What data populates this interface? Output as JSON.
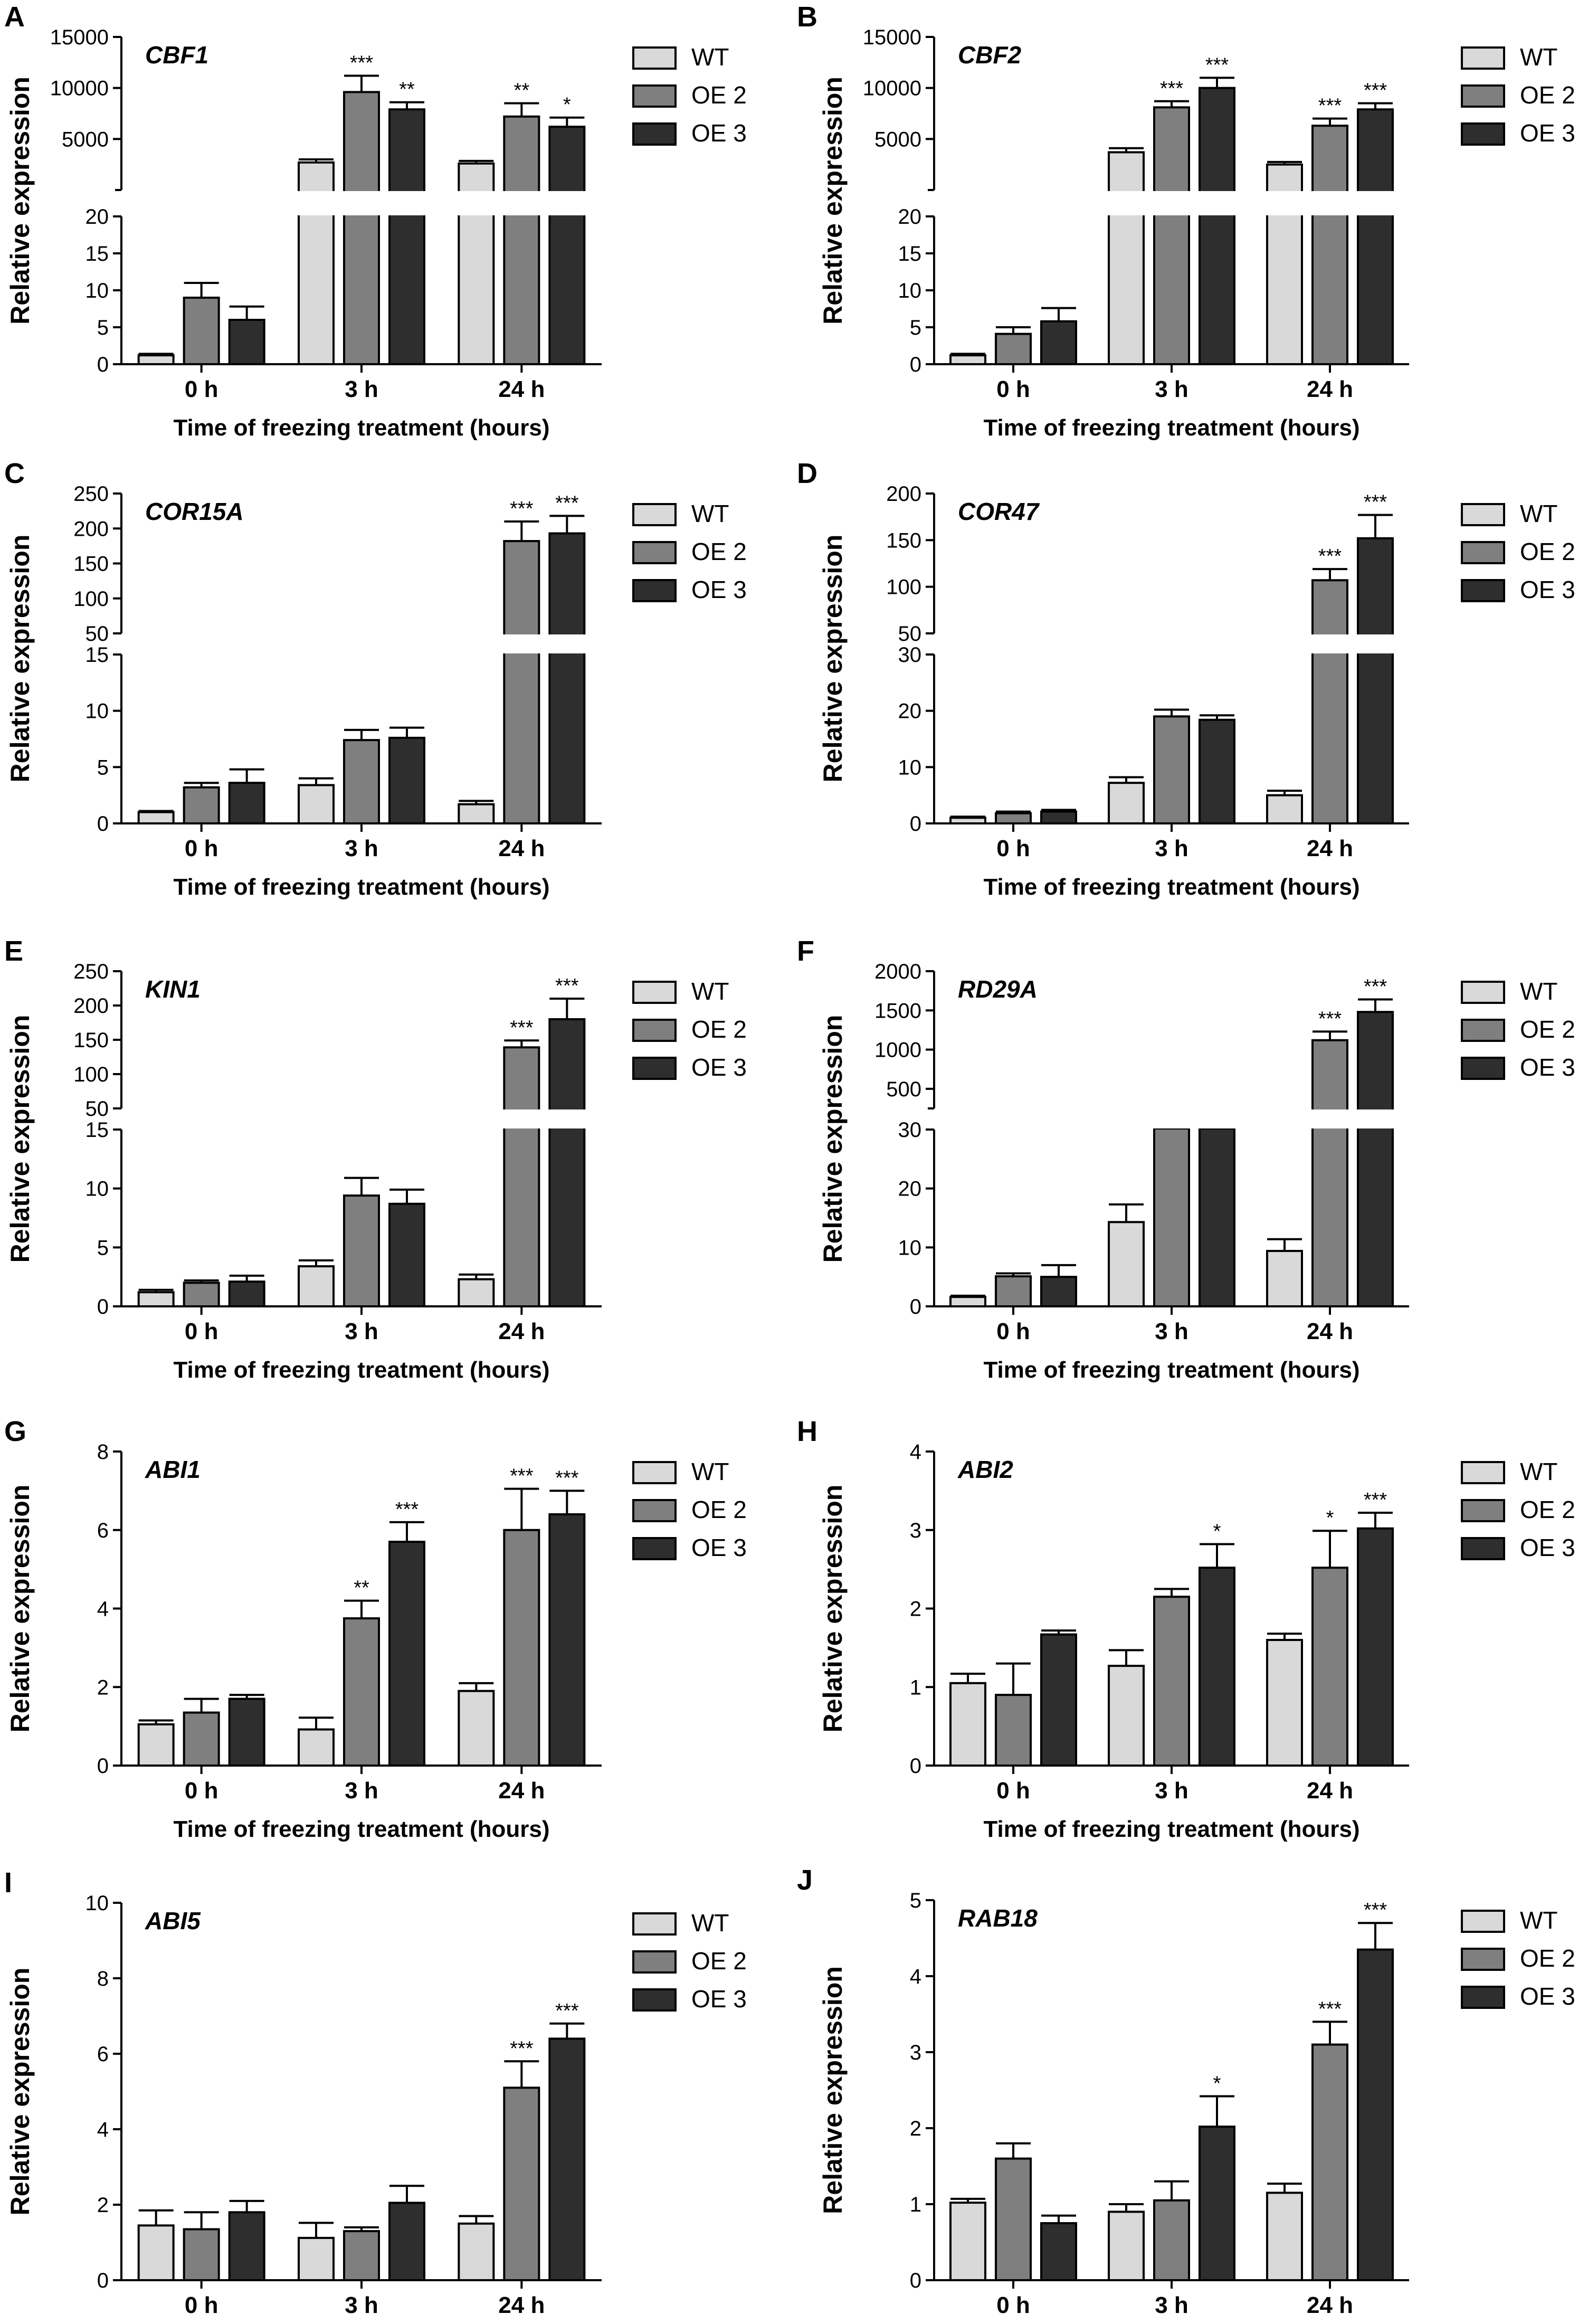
{
  "figure": {
    "series_names": [
      "WT",
      "OE 2",
      "OE 3"
    ],
    "series_colors": [
      "#d9d9d9",
      "#7f7f7f",
      "#2e2e2e"
    ],
    "x_categories": [
      "0 h",
      "3 h",
      "24 h"
    ],
    "xlabel": "Time of freezing treatment (hours)",
    "ylabel": "Relative expression"
  },
  "chart_data": [
    {
      "panel": "A",
      "gene": "CBF1",
      "type": "bar",
      "categories": [
        "0 h",
        "3 h",
        "24 h"
      ],
      "xlabel": "Time of freezing treatment (hours)",
      "ylabel": "Relative expression",
      "axis_break": true,
      "lower_ylim": [
        0,
        20
      ],
      "lower_ticks": [
        0,
        5,
        10,
        15,
        20
      ],
      "upper_ylim": [
        0,
        15000
      ],
      "upper_ticks": [
        5000,
        10000,
        15000
      ],
      "series": [
        {
          "name": "WT",
          "values": [
            1.2,
            2700,
            2600
          ],
          "errors": [
            0.2,
            300,
            250
          ],
          "sig": [
            "",
            "",
            ""
          ]
        },
        {
          "name": "OE 2",
          "values": [
            9.0,
            9600,
            7200
          ],
          "errors": [
            2.0,
            1600,
            1300
          ],
          "sig": [
            "",
            "***",
            "**"
          ]
        },
        {
          "name": "OE 3",
          "values": [
            6.0,
            7900,
            6200
          ],
          "errors": [
            1.8,
            700,
            900
          ],
          "sig": [
            "",
            "**",
            "*"
          ]
        }
      ]
    },
    {
      "panel": "B",
      "gene": "CBF2",
      "type": "bar",
      "categories": [
        "0 h",
        "3 h",
        "24 h"
      ],
      "xlabel": "Time of freezing treatment (hours)",
      "ylabel": "Relative expression",
      "axis_break": true,
      "lower_ylim": [
        0,
        20
      ],
      "lower_ticks": [
        0,
        5,
        10,
        15,
        20
      ],
      "upper_ylim": [
        0,
        15000
      ],
      "upper_ticks": [
        5000,
        10000,
        15000
      ],
      "series": [
        {
          "name": "WT",
          "values": [
            1.2,
            3700,
            2500
          ],
          "errors": [
            0.2,
            400,
            250
          ],
          "sig": [
            "",
            "",
            ""
          ]
        },
        {
          "name": "OE 2",
          "values": [
            4.1,
            8100,
            6300
          ],
          "errors": [
            0.9,
            600,
            700
          ],
          "sig": [
            "",
            "***",
            "***"
          ]
        },
        {
          "name": "OE 3",
          "values": [
            5.8,
            10000,
            7900
          ],
          "errors": [
            1.8,
            1000,
            600
          ],
          "sig": [
            "",
            "***",
            "***"
          ]
        }
      ]
    },
    {
      "panel": "C",
      "gene": "COR15A",
      "type": "bar",
      "categories": [
        "0 h",
        "3 h",
        "24 h"
      ],
      "xlabel": "Time of freezing treatment (hours)",
      "ylabel": "Relative expression",
      "axis_break": true,
      "lower_ylim": [
        0,
        15
      ],
      "lower_ticks": [
        0,
        5,
        10,
        15
      ],
      "upper_ylim": [
        50,
        250
      ],
      "upper_ticks": [
        50,
        100,
        150,
        200,
        250
      ],
      "series": [
        {
          "name": "WT",
          "values": [
            1.0,
            3.4,
            1.7
          ],
          "errors": [
            0.1,
            0.6,
            0.3
          ],
          "sig": [
            "",
            "",
            ""
          ]
        },
        {
          "name": "OE 2",
          "values": [
            3.2,
            7.4,
            182
          ],
          "errors": [
            0.4,
            0.9,
            28
          ],
          "sig": [
            "",
            "",
            "***"
          ]
        },
        {
          "name": "OE 3",
          "values": [
            3.6,
            7.6,
            193
          ],
          "errors": [
            1.2,
            0.9,
            25
          ],
          "sig": [
            "",
            "",
            "***"
          ]
        }
      ]
    },
    {
      "panel": "D",
      "gene": "COR47",
      "type": "bar",
      "categories": [
        "0 h",
        "3 h",
        "24 h"
      ],
      "xlabel": "Time of freezing treatment (hours)",
      "ylabel": "Relative expression",
      "axis_break": true,
      "lower_ylim": [
        0,
        30
      ],
      "lower_ticks": [
        0,
        10,
        20,
        30
      ],
      "upper_ylim": [
        50,
        200
      ],
      "upper_ticks": [
        50,
        100,
        150,
        200
      ],
      "series": [
        {
          "name": "WT",
          "values": [
            1.0,
            7.2,
            5.0
          ],
          "errors": [
            0.2,
            1.0,
            0.8
          ],
          "sig": [
            "",
            "",
            ""
          ]
        },
        {
          "name": "OE 2",
          "values": [
            1.8,
            19.0,
            107
          ],
          "errors": [
            0.3,
            1.2,
            12
          ],
          "sig": [
            "",
            "",
            "***"
          ]
        },
        {
          "name": "OE 3",
          "values": [
            2.1,
            18.4,
            152
          ],
          "errors": [
            0.3,
            0.8,
            25
          ],
          "sig": [
            "",
            "",
            "***"
          ]
        }
      ]
    },
    {
      "panel": "E",
      "gene": "KIN1",
      "type": "bar",
      "categories": [
        "0 h",
        "3 h",
        "24 h"
      ],
      "xlabel": "Time of freezing treatment (hours)",
      "ylabel": "Relative expression",
      "axis_break": true,
      "lower_ylim": [
        0,
        15
      ],
      "lower_ticks": [
        0,
        5,
        10,
        15
      ],
      "upper_ylim": [
        50,
        250
      ],
      "upper_ticks": [
        50,
        100,
        150,
        200,
        250
      ],
      "series": [
        {
          "name": "WT",
          "values": [
            1.2,
            3.4,
            2.3
          ],
          "errors": [
            0.2,
            0.5,
            0.4
          ],
          "sig": [
            "",
            "",
            ""
          ]
        },
        {
          "name": "OE 2",
          "values": [
            2.0,
            9.4,
            139
          ],
          "errors": [
            0.2,
            1.5,
            10
          ],
          "sig": [
            "",
            "",
            "***"
          ]
        },
        {
          "name": "OE 3",
          "values": [
            2.1,
            8.7,
            180
          ],
          "errors": [
            0.5,
            1.2,
            30
          ],
          "sig": [
            "",
            "",
            "***"
          ]
        }
      ]
    },
    {
      "panel": "F",
      "gene": "RD29A",
      "type": "bar",
      "categories": [
        "0 h",
        "3 h",
        "24 h"
      ],
      "xlabel": "Time of freezing treatment (hours)",
      "ylabel": "Relative expression",
      "axis_break": true,
      "lower_ylim": [
        0,
        30
      ],
      "lower_ticks": [
        0,
        10,
        20,
        30
      ],
      "upper_ylim": [
        250,
        2000
      ],
      "upper_ticks": [
        500,
        1000,
        1500,
        2000
      ],
      "series": [
        {
          "name": "WT",
          "values": [
            1.6,
            14.3,
            9.4
          ],
          "errors": [
            0.2,
            3.0,
            2.0
          ],
          "sig": [
            "",
            "",
            ""
          ]
        },
        {
          "name": "OE 2",
          "values": [
            5.1,
            31,
            1120
          ],
          "errors": [
            0.5,
            0,
            110
          ],
          "sig": [
            "",
            "",
            "***"
          ]
        },
        {
          "name": "OE 3",
          "values": [
            5.0,
            31,
            1480
          ],
          "errors": [
            2.0,
            0,
            160
          ],
          "sig": [
            "",
            "",
            "***"
          ]
        }
      ]
    },
    {
      "panel": "G",
      "gene": "ABI1",
      "type": "bar",
      "categories": [
        "0 h",
        "3 h",
        "24 h"
      ],
      "xlabel": "Time of freezing treatment (hours)",
      "ylabel": "Relative expression",
      "axis_break": false,
      "ylim": [
        0,
        8
      ],
      "yticks": [
        0,
        2,
        4,
        6,
        8
      ],
      "series": [
        {
          "name": "WT",
          "values": [
            1.05,
            0.92,
            1.9
          ],
          "errors": [
            0.1,
            0.3,
            0.2
          ],
          "sig": [
            "",
            "",
            ""
          ]
        },
        {
          "name": "OE 2",
          "values": [
            1.35,
            3.75,
            6.0
          ],
          "errors": [
            0.35,
            0.45,
            1.05
          ],
          "sig": [
            "",
            "**",
            "***"
          ]
        },
        {
          "name": "OE 3",
          "values": [
            1.7,
            5.7,
            6.4
          ],
          "errors": [
            0.1,
            0.5,
            0.6
          ],
          "sig": [
            "",
            "***",
            "***"
          ]
        }
      ]
    },
    {
      "panel": "H",
      "gene": "ABI2",
      "type": "bar",
      "categories": [
        "0 h",
        "3 h",
        "24 h"
      ],
      "xlabel": "Time of freezing treatment (hours)",
      "ylabel": "Relative expression",
      "axis_break": false,
      "ylim": [
        0,
        4
      ],
      "yticks": [
        0,
        1,
        2,
        3,
        4
      ],
      "series": [
        {
          "name": "WT",
          "values": [
            1.05,
            1.27,
            1.6
          ],
          "errors": [
            0.12,
            0.2,
            0.08
          ],
          "sig": [
            "",
            "",
            ""
          ]
        },
        {
          "name": "OE 2",
          "values": [
            0.9,
            2.15,
            2.52
          ],
          "errors": [
            0.4,
            0.1,
            0.47
          ],
          "sig": [
            "",
            "",
            "*"
          ]
        },
        {
          "name": "OE 3",
          "values": [
            1.67,
            2.52,
            3.02
          ],
          "errors": [
            0.05,
            0.3,
            0.2
          ],
          "sig": [
            "",
            "*",
            "***"
          ]
        }
      ]
    },
    {
      "panel": "I",
      "gene": "ABI5",
      "type": "bar",
      "categories": [
        "0 h",
        "3 h",
        "24 h"
      ],
      "xlabel": "Time of freezing treatment (hours)",
      "ylabel": "Relative expression",
      "axis_break": false,
      "ylim": [
        0,
        10
      ],
      "yticks": [
        0,
        2,
        4,
        6,
        8,
        10
      ],
      "series": [
        {
          "name": "WT",
          "values": [
            1.45,
            1.12,
            1.5
          ],
          "errors": [
            0.4,
            0.4,
            0.2
          ],
          "sig": [
            "",
            "",
            ""
          ]
        },
        {
          "name": "OE 2",
          "values": [
            1.35,
            1.3,
            5.1
          ],
          "errors": [
            0.45,
            0.1,
            0.7
          ],
          "sig": [
            "",
            "",
            "***"
          ]
        },
        {
          "name": "OE 3",
          "values": [
            1.8,
            2.05,
            6.4
          ],
          "errors": [
            0.3,
            0.45,
            0.4
          ],
          "sig": [
            "",
            "",
            "***"
          ]
        }
      ]
    },
    {
      "panel": "J",
      "gene": "RAB18",
      "type": "bar",
      "categories": [
        "0 h",
        "3 h",
        "24 h"
      ],
      "xlabel": "Time of freezing treatment (hours)",
      "ylabel": "Relative expression",
      "axis_break": false,
      "ylim": [
        0,
        5
      ],
      "yticks": [
        0,
        1,
        2,
        3,
        4,
        5
      ],
      "series": [
        {
          "name": "WT",
          "values": [
            1.02,
            0.9,
            1.15
          ],
          "errors": [
            0.05,
            0.1,
            0.12
          ],
          "sig": [
            "",
            "",
            ""
          ]
        },
        {
          "name": "OE 2",
          "values": [
            1.6,
            1.05,
            3.1
          ],
          "errors": [
            0.2,
            0.25,
            0.3
          ],
          "sig": [
            "",
            "",
            "***"
          ]
        },
        {
          "name": "OE 3",
          "values": [
            0.75,
            2.02,
            4.35
          ],
          "errors": [
            0.1,
            0.4,
            0.35
          ],
          "sig": [
            "",
            "*",
            "***"
          ]
        }
      ]
    }
  ]
}
